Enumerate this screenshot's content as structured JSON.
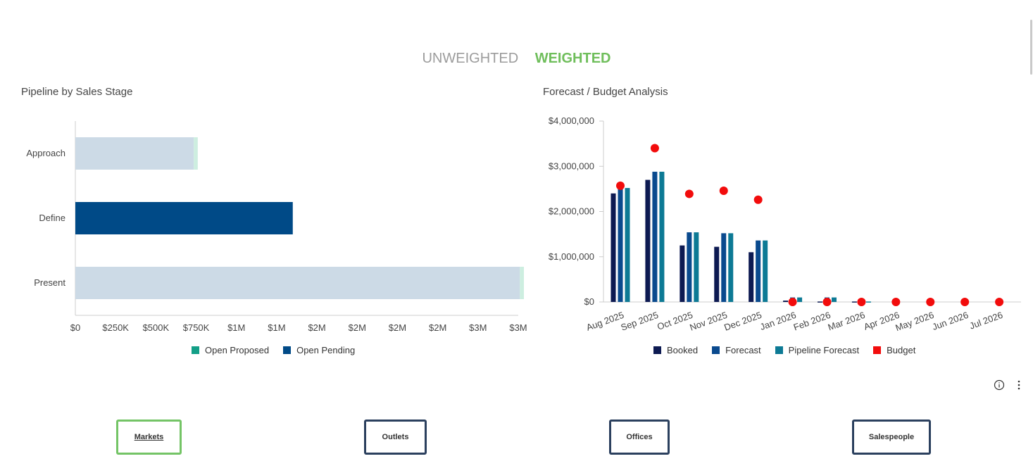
{
  "toggle": {
    "unweighted": "UNWEIGHTED",
    "weighted": "WEIGHTED"
  },
  "pipeline": {
    "title": "Pipeline by Sales Stage",
    "chart_data": {
      "type": "bar",
      "orientation": "horizontal",
      "categories": [
        "Approach",
        "Define",
        "Present"
      ],
      "series": [
        {
          "name": "Open Pending",
          "values": [
            735000,
            1350000,
            2760000
          ],
          "colors": [
            "#ccdae6",
            "#004a87",
            "#ccdae6"
          ]
        },
        {
          "name": "Open Proposed",
          "values": [
            25000,
            0,
            25000
          ],
          "colors": [
            "#cdeee0",
            "#cdeee0",
            "#cdeee0"
          ]
        }
      ],
      "x_ticks": [
        "$0",
        "$250K",
        "$500K",
        "$750K",
        "$1M",
        "$1M",
        "$2M",
        "$2M",
        "$2M",
        "$2M",
        "$3M",
        "$3M"
      ],
      "xlim": [
        0,
        2750000
      ]
    },
    "legend": [
      {
        "label": "Open Proposed",
        "color": "#139f87"
      },
      {
        "label": "Open Pending",
        "color": "#004a87"
      }
    ]
  },
  "forecast": {
    "title": "Forecast / Budget Analysis",
    "chart_data": {
      "type": "bar",
      "categories": [
        "Aug 2025",
        "Sep 2025",
        "Oct 2025",
        "Nov 2025",
        "Dec 2025",
        "Jan 2026",
        "Feb 2026",
        "Mar 2026",
        "Apr 2026",
        "May 2026",
        "Jun 2026",
        "Jul 2026"
      ],
      "series": [
        {
          "name": "Booked",
          "color": "#0d1a52",
          "values": [
            2400000,
            2700000,
            1250000,
            1220000,
            1100000,
            30000,
            10000,
            10000,
            0,
            0,
            0,
            0
          ]
        },
        {
          "name": "Forecast",
          "color": "#0a4a8e",
          "values": [
            2520000,
            2880000,
            1540000,
            1520000,
            1360000,
            100000,
            100000,
            10000,
            0,
            0,
            0,
            0
          ]
        },
        {
          "name": "Pipeline Forecast",
          "color": "#0d7a95",
          "values": [
            2520000,
            2880000,
            1540000,
            1520000,
            1360000,
            100000,
            100000,
            10000,
            0,
            0,
            0,
            0
          ]
        },
        {
          "name": "Budget",
          "color": "#f20c0c",
          "type": "scatter",
          "values": [
            2570000,
            3400000,
            2390000,
            2460000,
            2260000,
            0,
            0,
            0,
            0,
            0,
            0,
            0
          ]
        }
      ],
      "y_ticks": [
        "$0",
        "$1,000,000",
        "$2,000,000",
        "$3,000,000",
        "$4,000,000"
      ],
      "ylim": [
        0,
        4000000
      ]
    },
    "legend": [
      {
        "label": "Booked",
        "color": "#0d1a52"
      },
      {
        "label": "Forecast",
        "color": "#0a4a8e"
      },
      {
        "label": "Pipeline Forecast",
        "color": "#0d7a95"
      },
      {
        "label": "Budget",
        "color": "#f20c0c"
      }
    ]
  },
  "tabs": [
    {
      "label": "Markets",
      "active": true
    },
    {
      "label": "Outlets",
      "active": false
    },
    {
      "label": "Offices",
      "active": false
    },
    {
      "label": "Salespeople",
      "active": false
    }
  ],
  "icons": {
    "info": "info-icon",
    "more": "more-vertical-icon"
  }
}
